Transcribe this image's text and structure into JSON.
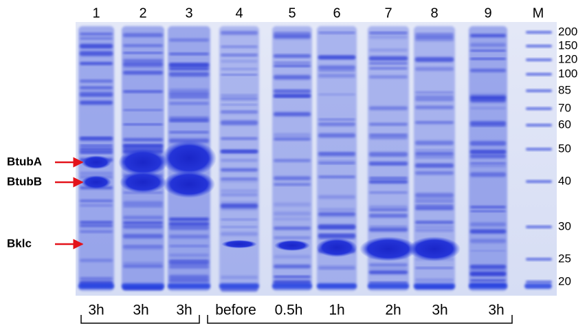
{
  "lanes": [
    "1",
    "2",
    "3",
    "4",
    "5",
    "6",
    "7",
    "8",
    "9",
    "M"
  ],
  "markers": [
    "200",
    "150",
    "120",
    "100",
    "85",
    "70",
    "60",
    "50",
    "40",
    "30",
    "25",
    "20"
  ],
  "arrows": [
    "BtubA",
    "BtubB",
    "Bklc"
  ],
  "times": [
    "3h",
    "3h",
    "3h",
    "before",
    "0.5h",
    "1h",
    "2h",
    "3h",
    "3h"
  ]
}
